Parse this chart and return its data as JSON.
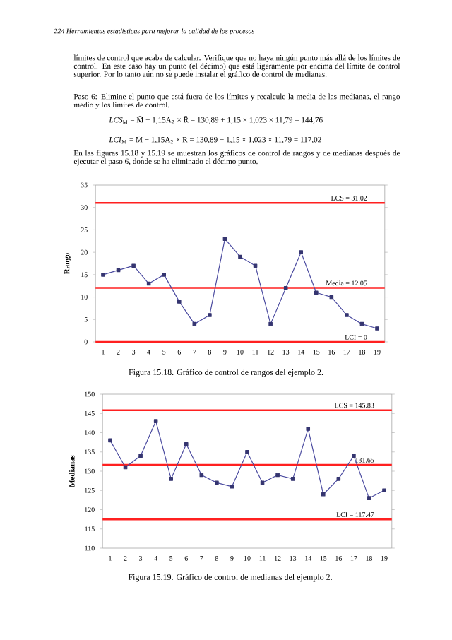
{
  "chart_data": [
    {
      "type": "line",
      "ylabel": "Rango",
      "categories": [
        "1",
        "2",
        "3",
        "4",
        "5",
        "6",
        "7",
        "8",
        "9",
        "10",
        "11",
        "12",
        "13",
        "14",
        "15",
        "16",
        "17",
        "18",
        "19"
      ],
      "values": [
        15,
        16,
        17,
        13,
        15,
        9,
        4,
        6,
        23,
        19,
        17,
        4,
        12,
        20,
        11,
        10,
        6,
        4,
        3
      ],
      "color": "#4b4ba0",
      "marker": "square",
      "ylim": [
        0,
        35
      ],
      "yticks": [
        0,
        5,
        10,
        15,
        20,
        25,
        30,
        35
      ],
      "ref_lines": [
        {
          "axis": "y",
          "value": 31.02,
          "label": "LCS = 31.02",
          "color": "#ff2020"
        },
        {
          "axis": "y",
          "value": 12.05,
          "label": "Media = 12.05",
          "color": "#ff2020"
        },
        {
          "axis": "y",
          "value": 0,
          "label": "LCI = 0",
          "color": "#ff2020"
        }
      ],
      "annotations": [
        "*224 Herramientas estadísticas para mejorar la calidad de los procesos*",
        "límites de control que acaba de calcular. Verifique que no haya ningún punto más allá de los límites de control. En este caso hay un punto (el décimo) que está ligeramente por encima del límite de control superior. Por lo tanto aún no se puede instalar el gráfico de control de medianas.",
        "Paso 6: Elimine el punto que está fuera de los límites y recalcule la media de las medianas, el rango medio y los límites de control.",
        "*LCS*$_{M}$ = M̄ + 1,15A$_{2}$ × R̄ = 130,89 + 1,15 × 1,023 × 11,79 = 144,76",
        "*LCI*$_{M}$ = M̄ − 1,15A$_{2}$ × R̄ = 130,89 − 1,15 × 1,023 × 11,79 = 117,02",
        "En las figuras 15.18 y 15.19 se muestran los gráficos de control de rangos y de medianas después de ejecutar el paso 6, donde se ha eliminado el décimo punto.",
        "Figura 15.18. Gráfico de control de rangos del ejemplo 2."
      ]
    },
    {
      "type": "line",
      "ylabel": "Medianas",
      "categories": [
        "1",
        "2",
        "3",
        "4",
        "5",
        "6",
        "7",
        "8",
        "9",
        "10",
        "11",
        "12",
        "13",
        "14",
        "15",
        "16",
        "17",
        "18",
        "19"
      ],
      "values": [
        138,
        131,
        134,
        143,
        128,
        137,
        129,
        127,
        126,
        135,
        127,
        129,
        128,
        141,
        124,
        128,
        134,
        123,
        125
      ],
      "color": "#4b4ba0",
      "marker": "square",
      "ylim": [
        110,
        150
      ],
      "yticks": [
        110,
        115,
        120,
        125,
        130,
        135,
        140,
        145,
        150
      ],
      "ref_lines": [
        {
          "axis": "y",
          "value": 145.83,
          "label": "LCS = 145.83",
          "color": "#ff2020"
        },
        {
          "axis": "y",
          "value": 131.65,
          "label": "131.65",
          "color": "#ff2020"
        },
        {
          "axis": "y",
          "value": 117.47,
          "label": "LCI = 117.47",
          "color": "#ff2020"
        }
      ],
      "annotations": [
        "Figura 15.19. Gráfico de control de medianas del ejemplo 2."
      ]
    }
  ]
}
